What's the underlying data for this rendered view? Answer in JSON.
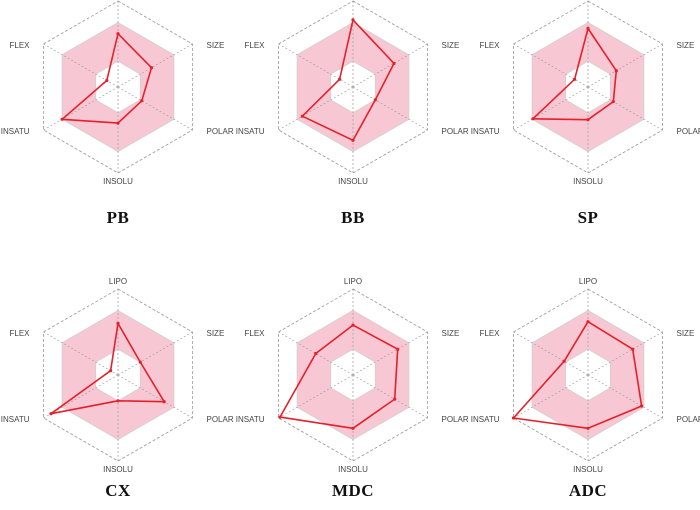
{
  "figure": {
    "axis_labels": [
      "LIPO",
      "SIZE",
      "POLAR",
      "INSOLU",
      "INSATU",
      "FLEX"
    ],
    "colors": {
      "optimal_band_fill": "#f4b6c6",
      "profile_line": "#e6202a",
      "grid_solid": "#cfcfcf",
      "grid_dashed": "#9a9a9a"
    }
  },
  "chart_data": [
    {
      "type": "radar",
      "title": "PB",
      "axes": [
        "LIPO",
        "SIZE",
        "POLAR",
        "INSOLU",
        "INSATU",
        "FLEX"
      ],
      "values": [
        0.62,
        0.45,
        0.32,
        0.42,
        0.75,
        0.15
      ],
      "optimal_range": [
        0.3,
        0.75
      ],
      "axis_max": 1.0
    },
    {
      "type": "radar",
      "title": "BB",
      "axes": [
        "LIPO",
        "SIZE",
        "POLAR",
        "INSOLU",
        "INSATU",
        "FLEX"
      ],
      "values": [
        0.78,
        0.55,
        0.3,
        0.62,
        0.68,
        0.18
      ],
      "optimal_range": [
        0.3,
        0.75
      ],
      "axis_max": 1.0
    },
    {
      "type": "radar",
      "title": "SP",
      "axes": [
        "LIPO",
        "SIZE",
        "POLAR",
        "INSOLU",
        "INSATU",
        "FLEX"
      ],
      "values": [
        0.68,
        0.38,
        0.34,
        0.38,
        0.74,
        0.18
      ],
      "optimal_range": [
        0.3,
        0.75
      ],
      "axis_max": 1.0
    },
    {
      "type": "radar",
      "title": "CX",
      "axes": [
        "LIPO",
        "SIZE",
        "POLAR",
        "INSOLU",
        "INSATU",
        "FLEX"
      ],
      "values": [
        0.6,
        0.3,
        0.62,
        0.3,
        0.9,
        0.1
      ],
      "optimal_range": [
        0.3,
        0.75
      ],
      "axis_max": 1.0
    },
    {
      "type": "radar",
      "title": "MDC",
      "axes": [
        "LIPO",
        "SIZE",
        "POLAR",
        "INSOLU",
        "INSATU",
        "FLEX"
      ],
      "values": [
        0.58,
        0.6,
        0.56,
        0.62,
        0.98,
        0.5
      ],
      "optimal_range": [
        0.3,
        0.75
      ],
      "axis_max": 1.0
    },
    {
      "type": "radar",
      "title": "ADC",
      "axes": [
        "LIPO",
        "SIZE",
        "POLAR",
        "INSOLU",
        "INSATU",
        "FLEX"
      ],
      "values": [
        0.62,
        0.6,
        0.72,
        0.62,
        1.0,
        0.32
      ],
      "optimal_range": [
        0.3,
        0.75
      ],
      "axis_max": 1.0
    }
  ]
}
